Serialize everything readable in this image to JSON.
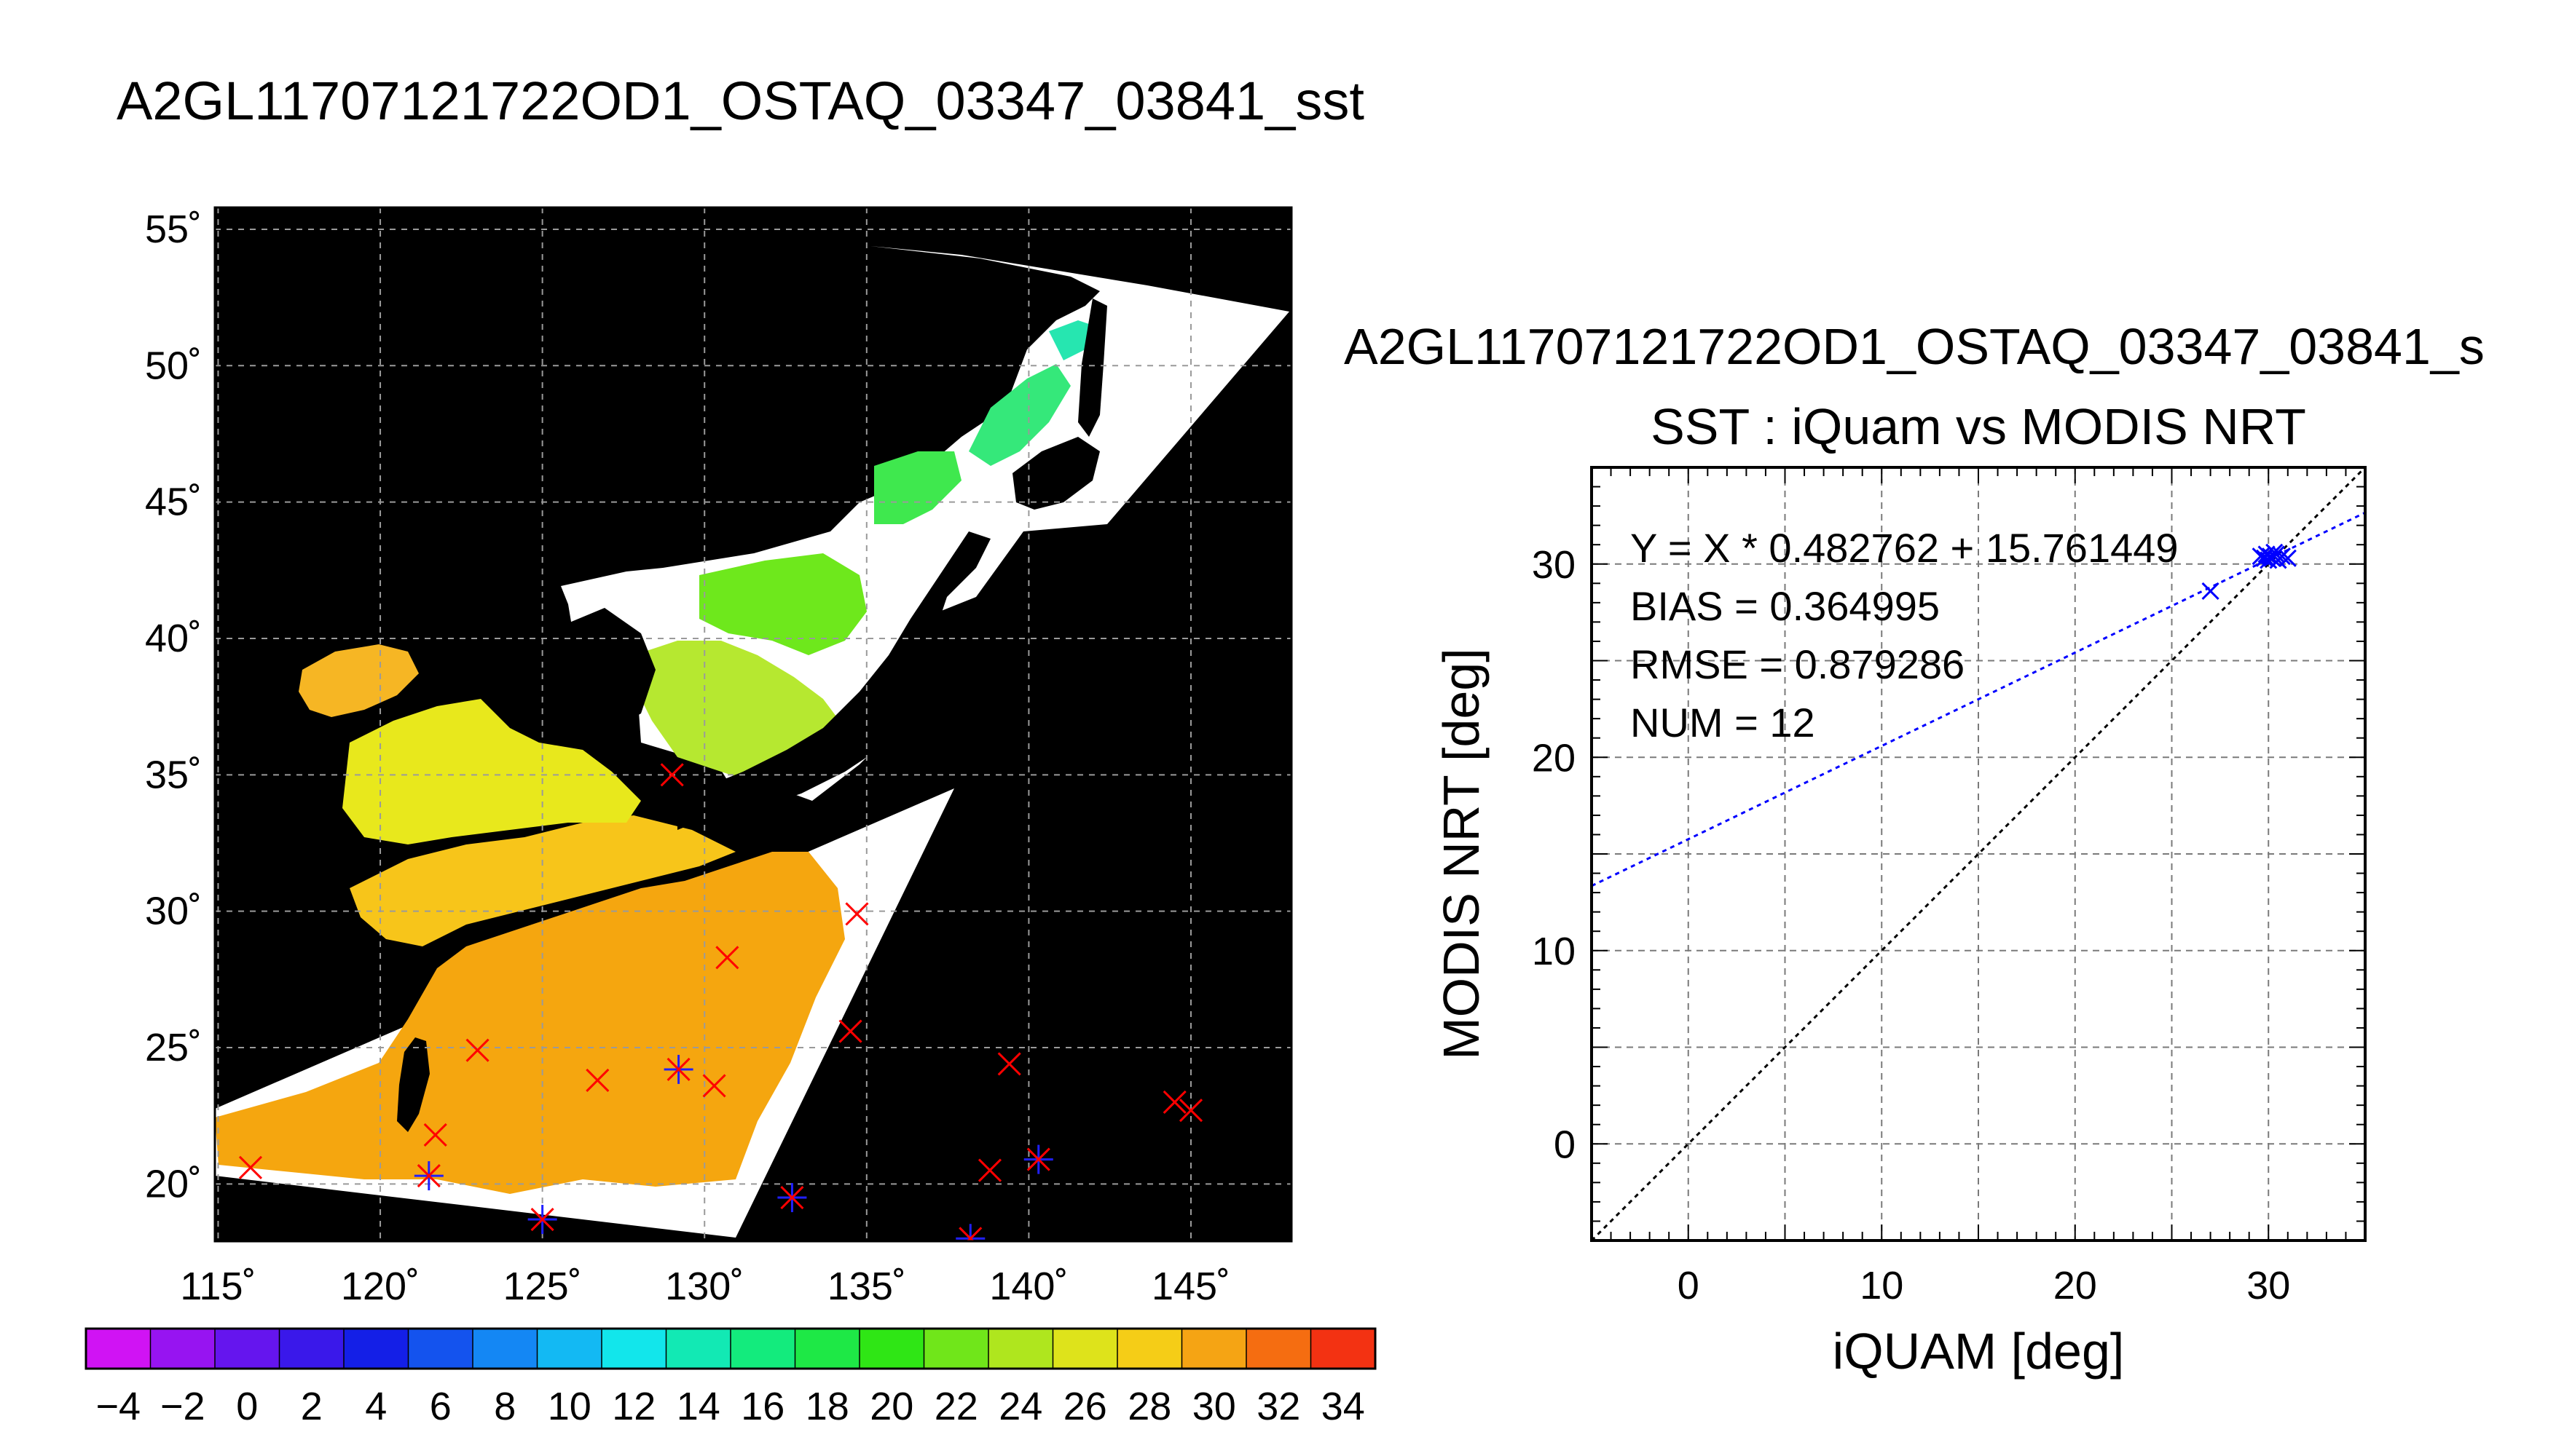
{
  "page_title": "A2GL11707121722OD1_OSTAQ_03347_03841_sst",
  "colors": {
    "map_background": "#000000",
    "cloud_mask": "#ffffff",
    "match_marker": "#ff0000",
    "match_marker_alt": "#2020ff",
    "fit_line": "#0000ff",
    "one_to_one_line": "#000000"
  },
  "chart_data": [
    {
      "type": "heatmap",
      "title": "",
      "xlabel": "",
      "ylabel": "",
      "x_ticks": [
        "115˚",
        "120˚",
        "125˚",
        "130˚",
        "135˚",
        "140˚",
        "145˚"
      ],
      "x_tick_values": [
        115,
        120,
        125,
        130,
        135,
        140,
        145
      ],
      "y_ticks": [
        "20˚",
        "25˚",
        "30˚",
        "35˚",
        "40˚",
        "45˚",
        "50˚",
        "55˚"
      ],
      "y_tick_values": [
        20,
        25,
        30,
        35,
        40,
        45,
        50,
        55
      ],
      "xlim": [
        114.9,
        148.1
      ],
      "ylim": [
        17.9,
        55.8
      ],
      "grid": true,
      "colorbar": {
        "labels": [
          "−4",
          "−2",
          "0",
          "2",
          "4",
          "6",
          "8",
          "10",
          "12",
          "14",
          "16",
          "18",
          "20",
          "22",
          "24",
          "26",
          "28",
          "30",
          "32",
          "34"
        ],
        "min": -5,
        "max": 35,
        "bins": 20
      },
      "matchups": [
        {
          "lon": 116.0,
          "lat": 20.6
        },
        {
          "lon": 121.5,
          "lat": 20.3
        },
        {
          "lon": 121.7,
          "lat": 21.8
        },
        {
          "lon": 123.0,
          "lat": 24.9
        },
        {
          "lon": 125.0,
          "lat": 18.7
        },
        {
          "lon": 126.7,
          "lat": 23.8
        },
        {
          "lon": 129.0,
          "lat": 35.0
        },
        {
          "lon": 129.2,
          "lat": 24.2
        },
        {
          "lon": 130.3,
          "lat": 23.6
        },
        {
          "lon": 130.7,
          "lat": 28.3
        },
        {
          "lon": 132.7,
          "lat": 19.5
        },
        {
          "lon": 134.5,
          "lat": 25.6
        },
        {
          "lon": 134.7,
          "lat": 29.9
        },
        {
          "lon": 138.2,
          "lat": 18.0
        },
        {
          "lon": 138.8,
          "lat": 20.5
        },
        {
          "lon": 139.4,
          "lat": 24.4
        },
        {
          "lon": 140.3,
          "lat": 20.9
        },
        {
          "lon": 144.5,
          "lat": 23.0
        },
        {
          "lon": 145.0,
          "lat": 22.7
        }
      ]
    },
    {
      "type": "scatter",
      "title": "SST : iQuam vs MODIS NRT",
      "subtitle": "A2GL11707121722OD1_OSTAQ_03347_03841_s",
      "xlabel": "iQUAM [deg]",
      "ylabel": "MODIS NRT [deg]",
      "xlim": [
        -5,
        35
      ],
      "ylim": [
        -5,
        35
      ],
      "x_ticks": [
        0,
        10,
        20,
        30
      ],
      "y_ticks": [
        0,
        10,
        20,
        30
      ],
      "grid": true,
      "points": [
        {
          "x": 27.0,
          "y": 28.6
        },
        {
          "x": 29.6,
          "y": 30.4
        },
        {
          "x": 29.8,
          "y": 30.3
        },
        {
          "x": 29.9,
          "y": 30.5
        },
        {
          "x": 30.0,
          "y": 30.2
        },
        {
          "x": 30.1,
          "y": 30.4
        },
        {
          "x": 30.2,
          "y": 30.3
        },
        {
          "x": 30.4,
          "y": 30.5
        },
        {
          "x": 30.5,
          "y": 30.2
        },
        {
          "x": 30.7,
          "y": 30.4
        },
        {
          "x": 31.0,
          "y": 30.3
        },
        {
          "x": 30.3,
          "y": 30.6
        }
      ],
      "fit": {
        "slope": 0.482762,
        "intercept": 15.761449
      },
      "stats": [
        "Y = X * 0.482762 + 15.761449",
        "BIAS = 0.364995",
        "RMSE = 0.879286",
        "NUM = 12"
      ]
    }
  ]
}
